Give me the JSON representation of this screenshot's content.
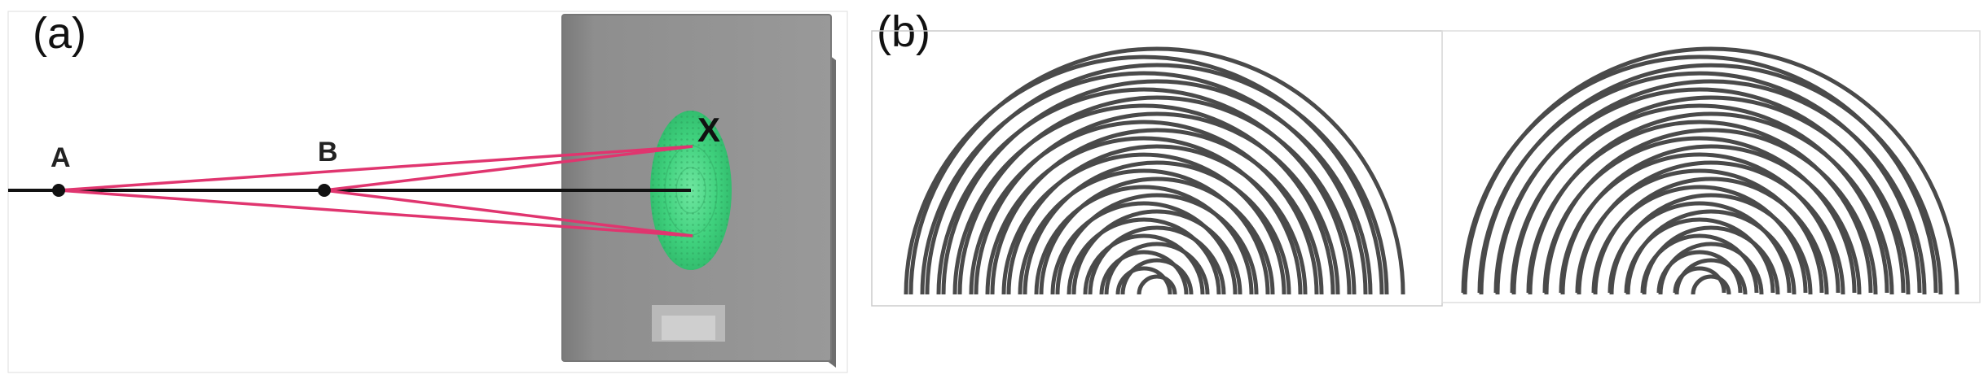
{
  "panel_a": {
    "label": "(a)",
    "point_a": "A",
    "point_b": "B",
    "point_x": "X",
    "colors": {
      "ray": "#e0356f",
      "axis": "#111111",
      "screen": "#8d8d8d",
      "spot": "#3fd17d"
    }
  },
  "panel_b": {
    "label": "(b)",
    "colors": {
      "wave": "#4a4a4a"
    }
  }
}
